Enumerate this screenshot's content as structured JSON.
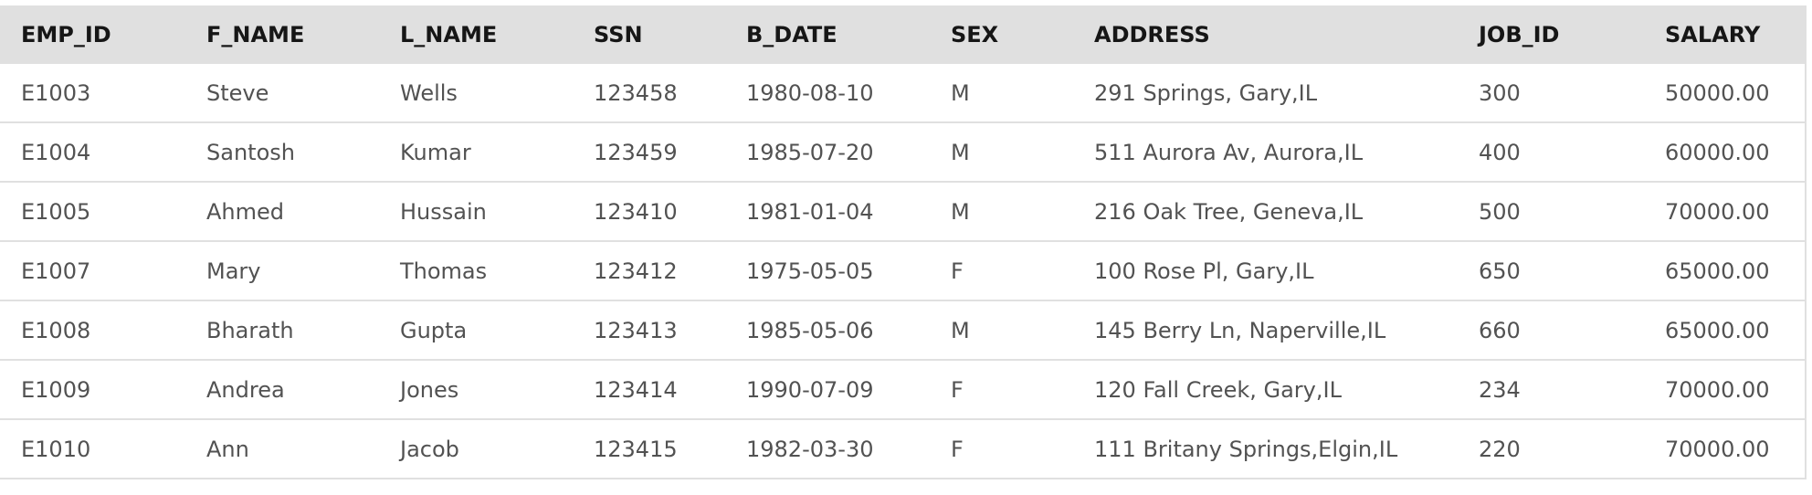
{
  "table": {
    "columns": [
      "EMP_ID",
      "F_NAME",
      "L_NAME",
      "SSN",
      "B_DATE",
      "SEX",
      "ADDRESS",
      "JOB_ID",
      "SALARY"
    ],
    "rows": [
      [
        "E1003",
        "Steve",
        "Wells",
        "123458",
        "1980-08-10",
        "M",
        "291 Springs, Gary,IL",
        "300",
        "50000.00"
      ],
      [
        "E1004",
        "Santosh",
        "Kumar",
        "123459",
        "1985-07-20",
        "M",
        "511 Aurora Av, Aurora,IL",
        "400",
        "60000.00"
      ],
      [
        "E1005",
        "Ahmed",
        "Hussain",
        "123410",
        "1981-01-04",
        "M",
        "216 Oak Tree, Geneva,IL",
        "500",
        "70000.00"
      ],
      [
        "E1007",
        "Mary",
        "Thomas",
        "123412",
        "1975-05-05",
        "F",
        "100 Rose Pl, Gary,IL",
        "650",
        "65000.00"
      ],
      [
        "E1008",
        "Bharath",
        "Gupta",
        "123413",
        "1985-05-06",
        "M",
        "145 Berry Ln, Naperville,IL",
        "660",
        "65000.00"
      ],
      [
        "E1009",
        "Andrea",
        "Jones",
        "123414",
        "1990-07-09",
        "F",
        "120 Fall Creek, Gary,IL",
        "234",
        "70000.00"
      ],
      [
        "E1010",
        "Ann",
        "Jacob",
        "123415",
        "1982-03-30",
        "F",
        "111 Britany Springs,Elgin,IL",
        "220",
        "70000.00"
      ]
    ]
  }
}
